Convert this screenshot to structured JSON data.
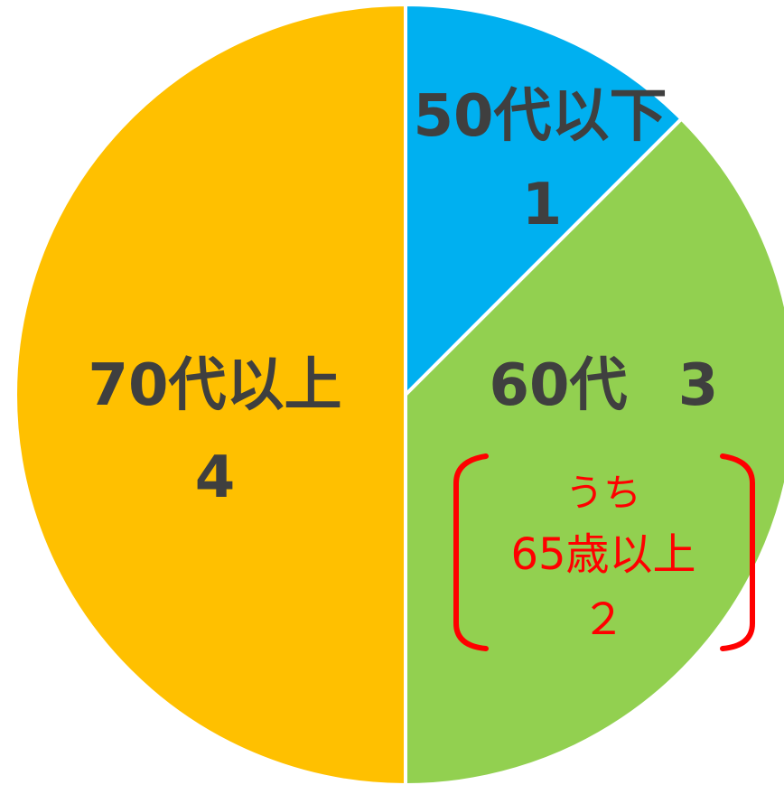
{
  "chart_data": {
    "type": "pie",
    "start_angle_deg": 0,
    "direction": "clockwise",
    "slices": [
      {
        "label": "50代以下",
        "value": 1,
        "value_text": "1",
        "color": "#00B0F0"
      },
      {
        "label": "60代",
        "value": 3,
        "value_text": "3",
        "color": "#92D050"
      },
      {
        "label": "70代以上",
        "value": 4,
        "value_text": "4",
        "color": "#FFC000"
      }
    ],
    "annotation": {
      "lines": [
        "うち",
        "65歳以上",
        "２"
      ],
      "color": "#FF0000"
    }
  }
}
